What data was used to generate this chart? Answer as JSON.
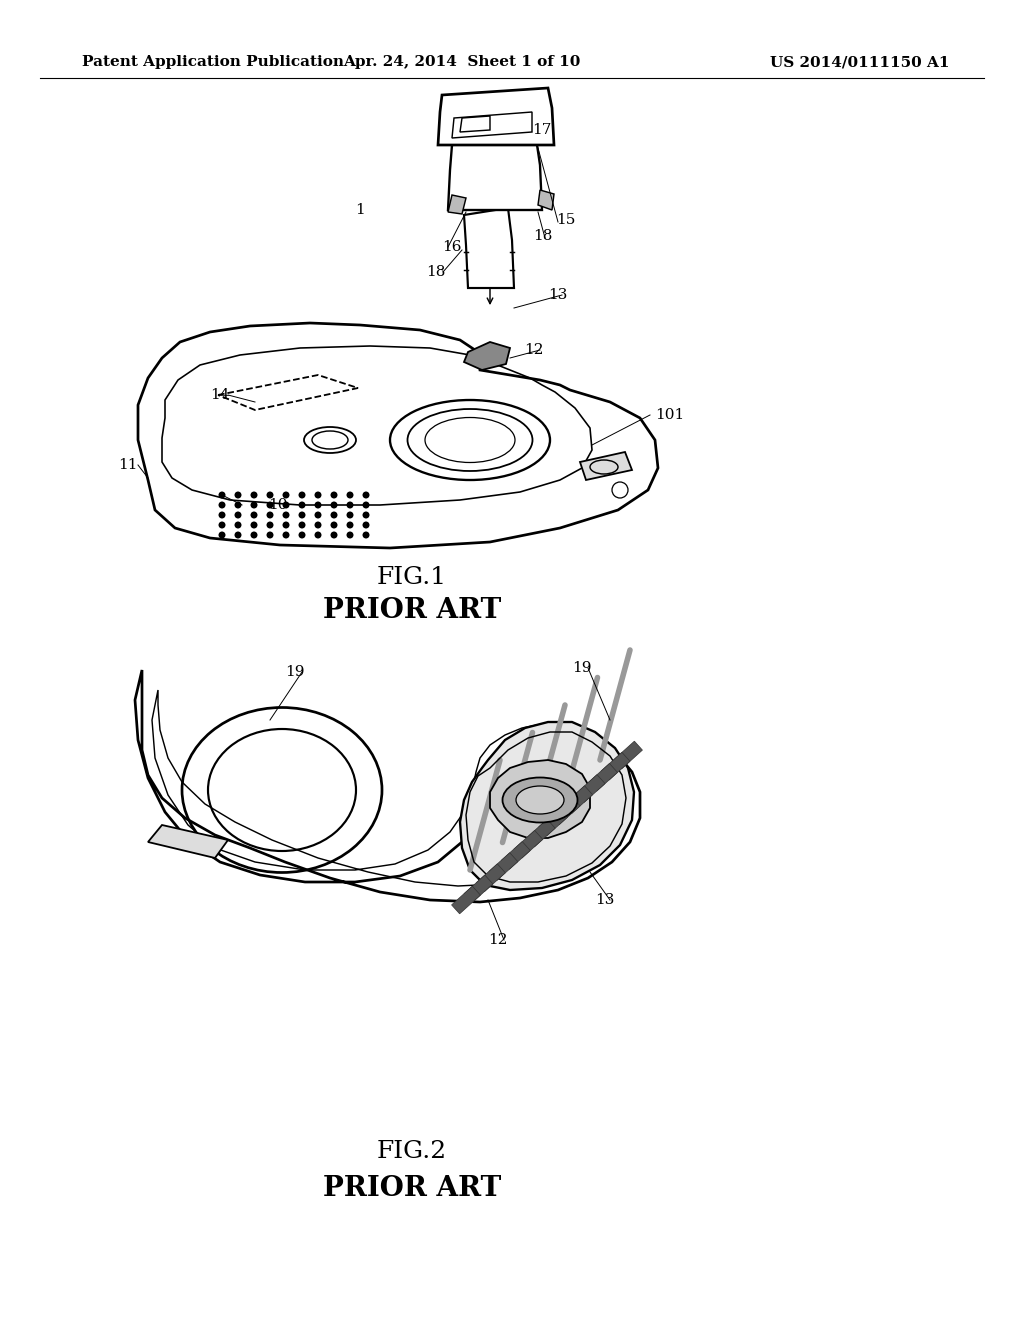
{
  "bg_color": "#ffffff",
  "header_left": "Patent Application Publication",
  "header_mid": "Apr. 24, 2014  Sheet 1 of 10",
  "header_right": "US 2014/0111150 A1",
  "header_fontsize": 11,
  "fig1_caption": "FIG.1",
  "fig1_sub": "PRIOR ART",
  "fig2_caption": "FIG.2",
  "fig2_sub": "PRIOR ART",
  "caption_fontsize": 18,
  "sub_fontsize": 20,
  "label_fontsize": 11,
  "line_color": "#000000",
  "line_width": 1.3
}
